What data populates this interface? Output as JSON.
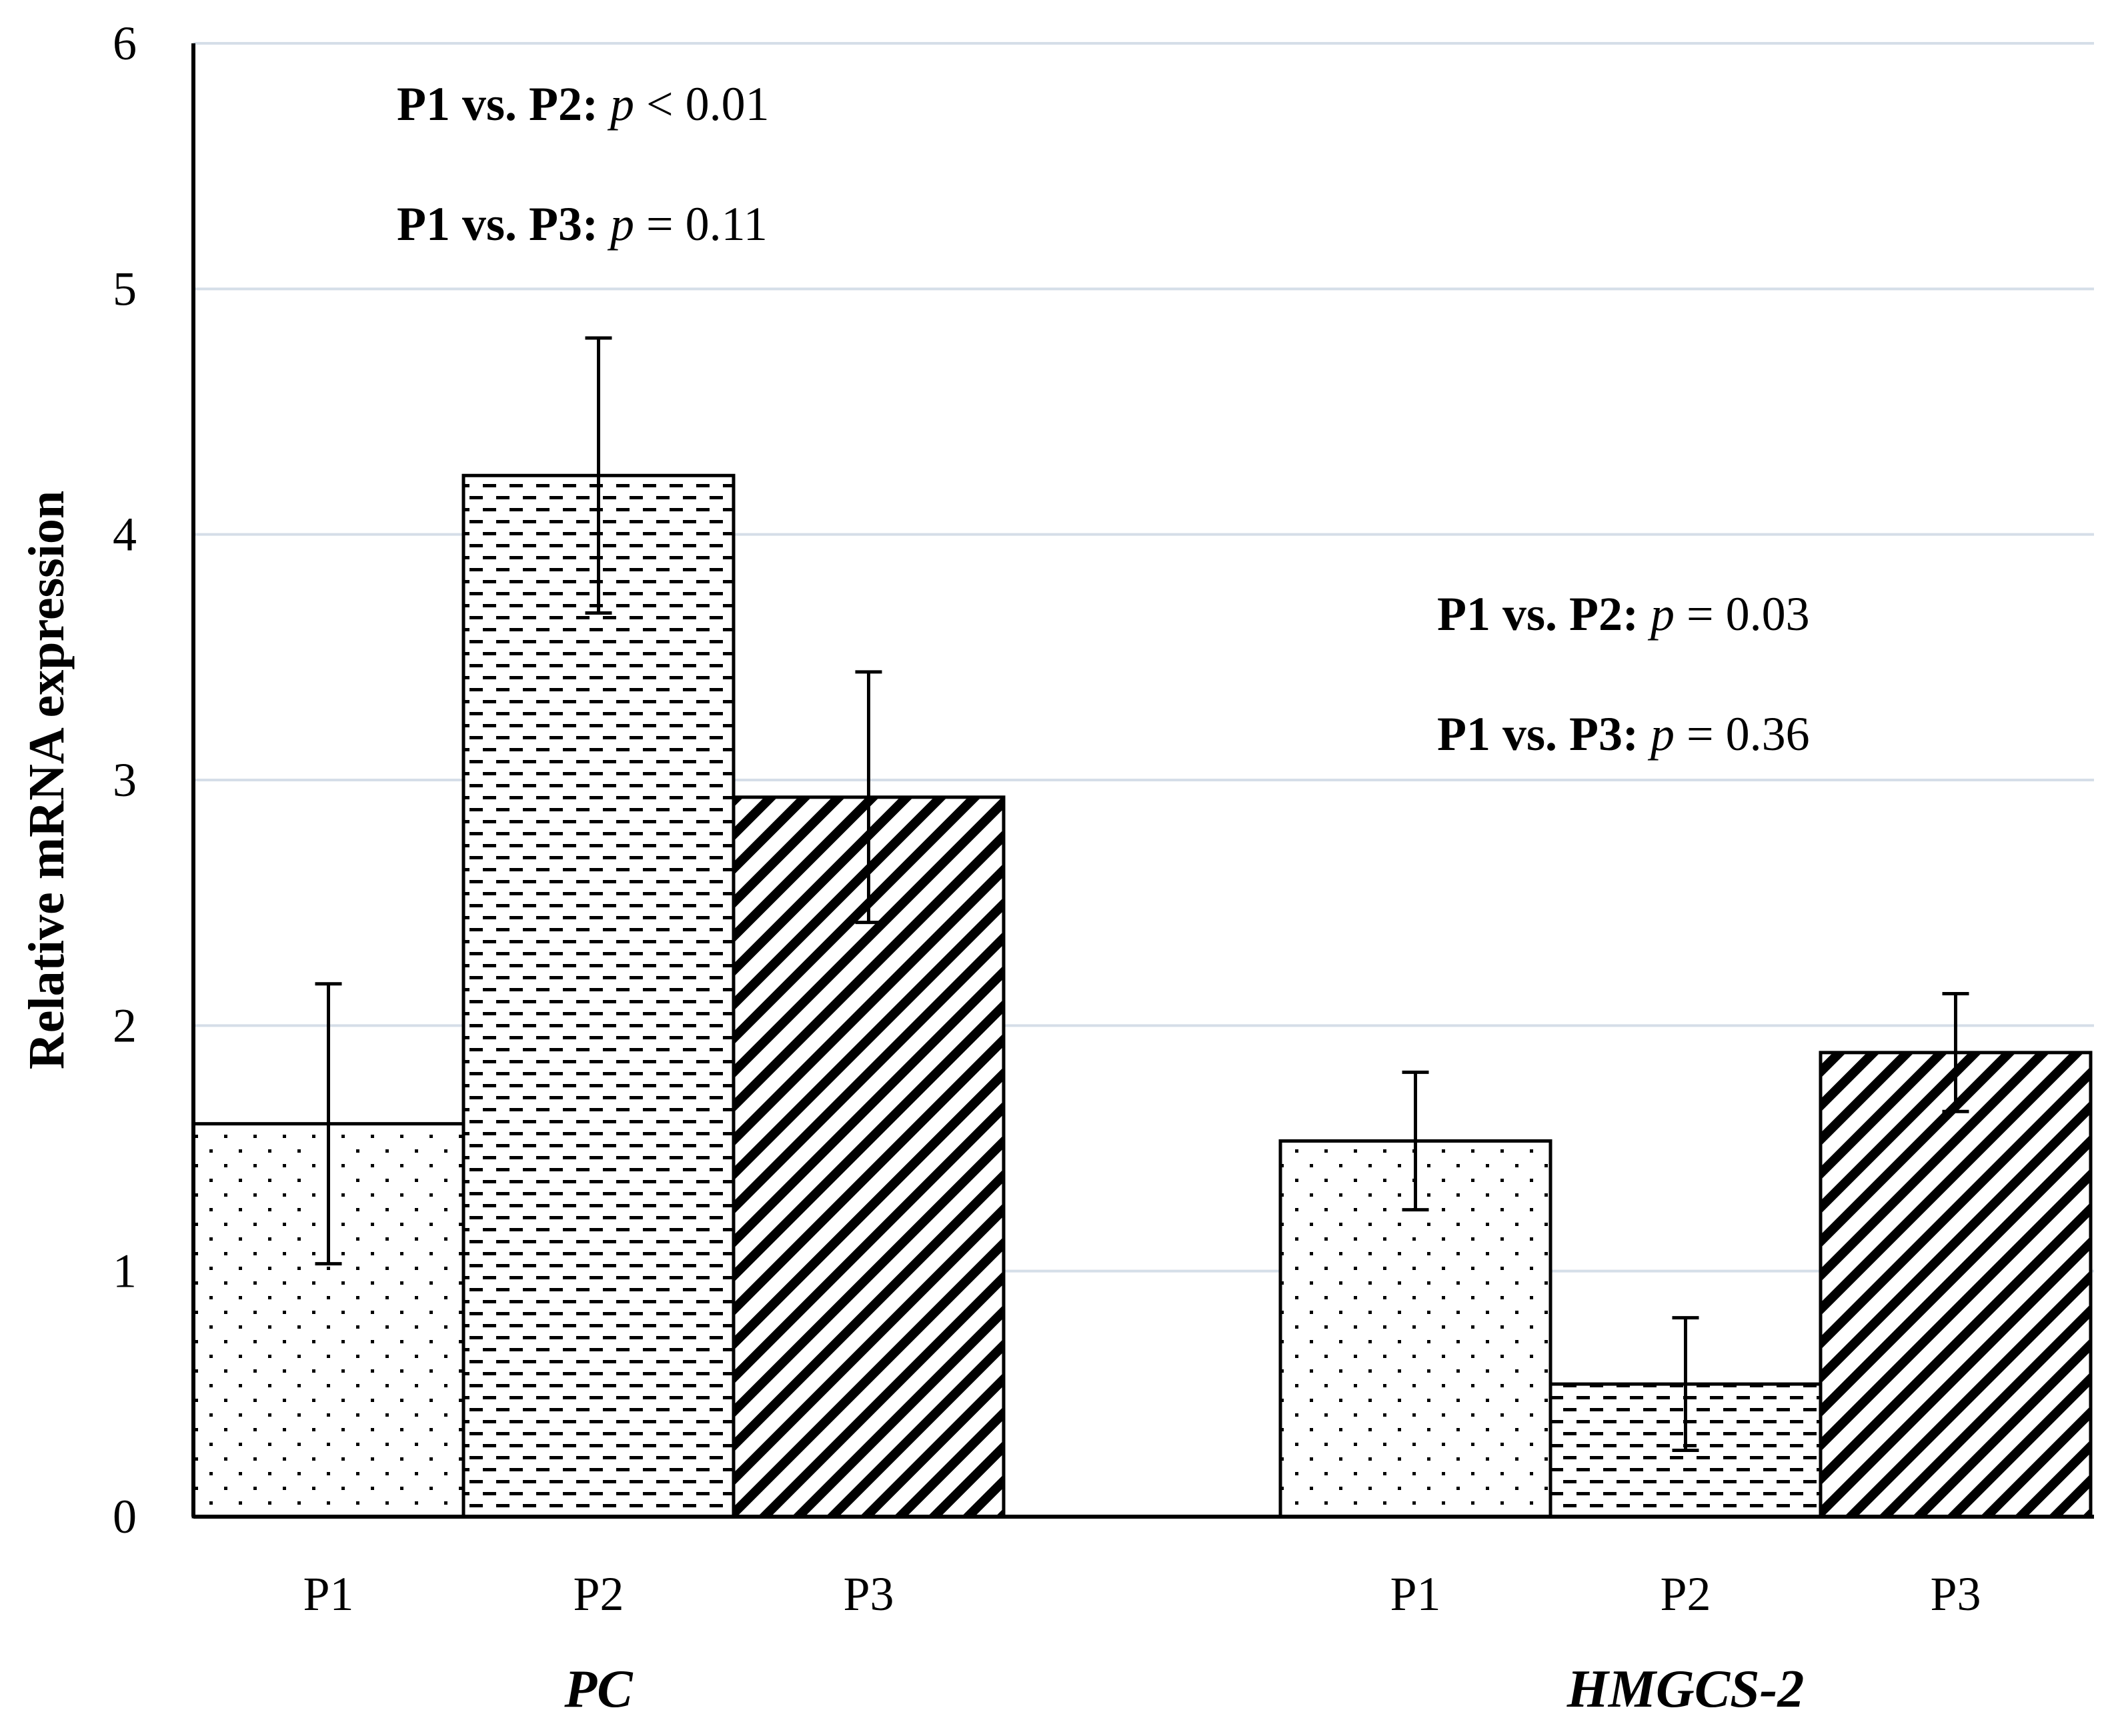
{
  "chart_data": {
    "type": "bar",
    "ylabel": "Relative mRNA expression",
    "ylim": [
      0,
      6
    ],
    "yticks": [
      0,
      1,
      2,
      3,
      4,
      5,
      6
    ],
    "grid": true,
    "groups": [
      {
        "name": "PC",
        "bars": [
          {
            "label": "P1",
            "value": 1.6,
            "error": 0.57,
            "pattern": "dots"
          },
          {
            "label": "P2",
            "value": 4.24,
            "error": 0.56,
            "pattern": "dashes"
          },
          {
            "label": "P3",
            "value": 2.93,
            "error": 0.51,
            "pattern": "diagonal"
          }
        ],
        "annotations": [
          {
            "prefix": "P1 vs. P2:",
            "p": "p",
            "rest": " < 0.01"
          },
          {
            "prefix": "P1 vs. P3:",
            "p": "p",
            "rest": " = 0.11"
          }
        ]
      },
      {
        "name": "HMGCS-2",
        "bars": [
          {
            "label": "P1",
            "value": 1.53,
            "error": 0.28,
            "pattern": "dots"
          },
          {
            "label": "P2",
            "value": 0.54,
            "error": 0.27,
            "pattern": "dashes"
          },
          {
            "label": "P3",
            "value": 1.89,
            "error": 0.24,
            "pattern": "diagonal"
          }
        ],
        "annotations": [
          {
            "prefix": "P1 vs. P2:",
            "p": "p",
            "rest": " = 0.03"
          },
          {
            "prefix": "P1 vs. P3:",
            "p": "p",
            "rest": " = 0.36"
          }
        ]
      }
    ]
  }
}
